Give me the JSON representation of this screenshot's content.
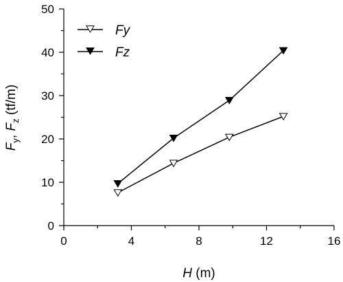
{
  "chart_data": {
    "type": "line",
    "title": "",
    "xlabel": {
      "symbol": "H",
      "unit": " (m)"
    },
    "ylabel": {
      "f1": "F",
      "s1": "y",
      "sep": ", ",
      "f2": "F",
      "s2": "z",
      "unit": " (tf/m)"
    },
    "xlim": [
      0,
      16
    ],
    "ylim": [
      0,
      50
    ],
    "xticks": [
      0,
      4,
      8,
      12,
      16
    ],
    "yticks": [
      0,
      10,
      20,
      30,
      40,
      50
    ],
    "grid": false,
    "legend_position": "top-left",
    "series": [
      {
        "name": "Fy",
        "marker": "open-down-triangle",
        "color": "#000000",
        "x": [
          3.2,
          6.5,
          9.8,
          13.0
        ],
        "y": [
          7.6,
          14.4,
          20.4,
          25.2
        ]
      },
      {
        "name": "Fz",
        "marker": "filled-down-triangle",
        "color": "#000000",
        "x": [
          3.2,
          6.5,
          9.8,
          13.0
        ],
        "y": [
          9.7,
          20.2,
          28.9,
          40.4
        ]
      }
    ]
  }
}
